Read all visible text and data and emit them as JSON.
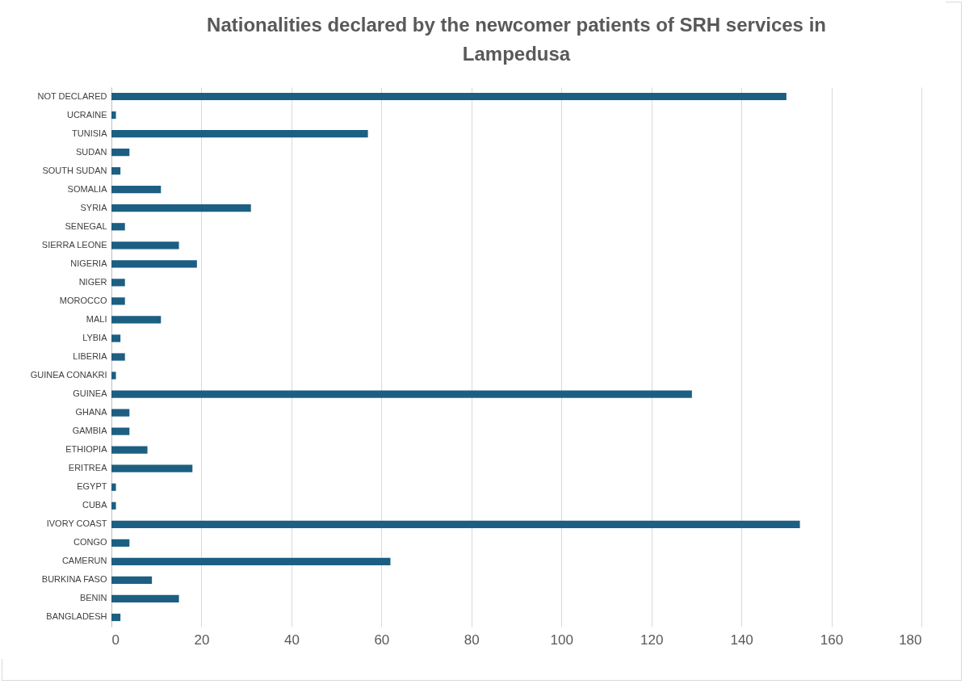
{
  "chart_data": {
    "type": "bar",
    "orientation": "horizontal",
    "title": "Nationalities declared by the newcomer patients of SRH services in Lampedusa",
    "categories": [
      "NOT DECLARED",
      "UCRAINE",
      "TUNISIA",
      "SUDAN",
      "SOUTH SUDAN",
      "SOMALIA",
      "SYRIA",
      "SENEGAL",
      "SIERRA LEONE",
      "NIGERIA",
      "NIGER",
      "MOROCCO",
      "MALI",
      "LYBIA",
      "LIBERIA",
      "GUINEA CONAKRI",
      "GUINEA",
      "GHANA",
      "GAMBIA",
      "ETHIOPIA",
      "ERITREA",
      "EGYPT",
      "CUBA",
      "IVORY COAST",
      "CONGO",
      "CAMERUN",
      "BURKINA FASO",
      "BENIN",
      "BANGLADESH"
    ],
    "values": [
      150,
      1,
      57,
      4,
      2,
      11,
      31,
      3,
      15,
      19,
      3,
      3,
      11,
      2,
      3,
      1,
      129,
      4,
      4,
      8,
      18,
      1,
      1,
      153,
      4,
      62,
      9,
      15,
      2
    ],
    "color": "#1c5f82",
    "xlim": [
      0,
      180
    ],
    "xticks": [
      0,
      20,
      40,
      60,
      80,
      100,
      120,
      140,
      160,
      180
    ],
    "grid": "x"
  }
}
